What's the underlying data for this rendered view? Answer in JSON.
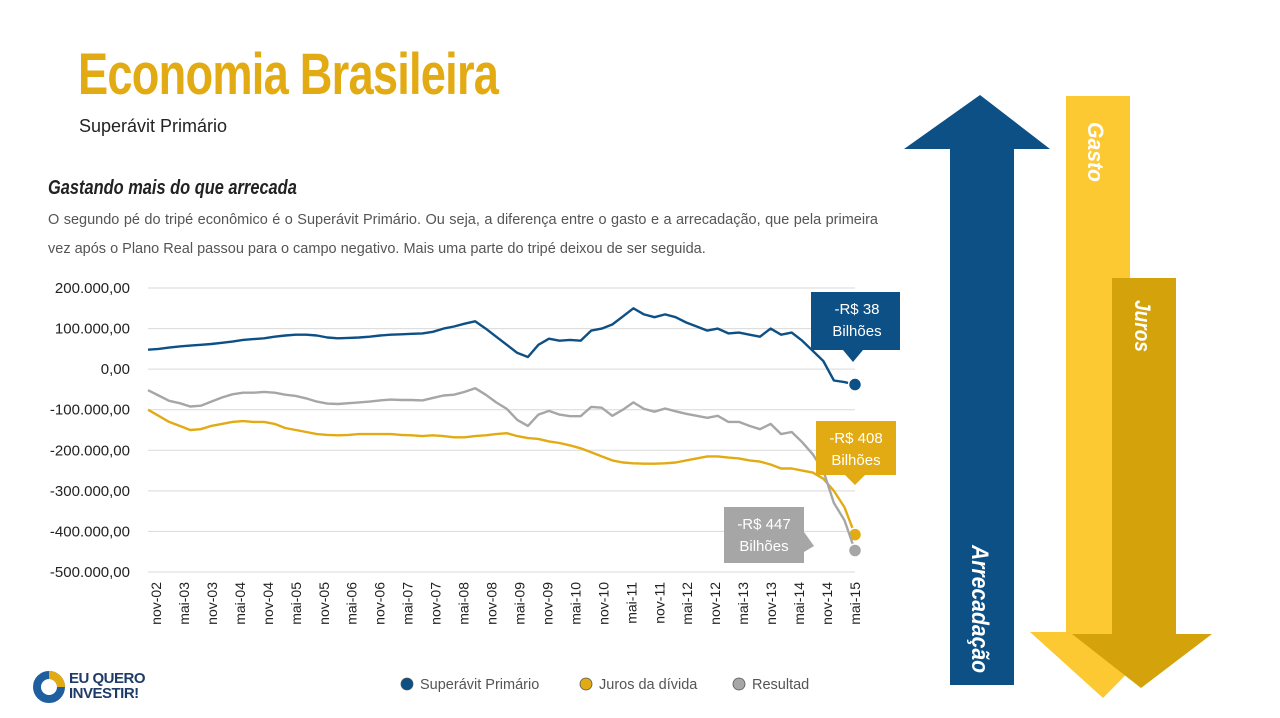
{
  "header": {
    "title": "Economia Brasileira",
    "subtitle": "Superávit Primário"
  },
  "section": {
    "heading": "Gastando mais do que arrecada",
    "paragraph": "O segundo pé do tripé econômico é o Superávit Primário. Ou seja, a diferença entre o gasto e a arrecadação, que pela primeira vez após o Plano Real passou para o campo negativo. Mais uma parte do tripé deixou de ser seguida."
  },
  "arrows": {
    "arrecadacao": "Arrecadação",
    "gasto": "Gasto",
    "juros": "Juros"
  },
  "logo": {
    "line1": "EU QUERO",
    "line2": "INVESTIR!"
  },
  "colors": {
    "blue": "#0d5086",
    "gold": "#e2ab13",
    "gray": "#a6a6a6",
    "arrow_gold_light": "#fdc933",
    "arrow_gold_dark": "#d4a20a"
  },
  "chart_data": {
    "type": "line",
    "ylim": [
      -500000,
      200000
    ],
    "yticks": [
      "200.000,00",
      "100.000,00",
      "0,00",
      "-100.000,00",
      "-200.000,00",
      "-300.000,00",
      "-400.000,00",
      "-500.000,00"
    ],
    "ytick_values": [
      200000,
      100000,
      0,
      -100000,
      -200000,
      -300000,
      -400000,
      -500000
    ],
    "x_labels": [
      "nov-02",
      "mai-03",
      "nov-03",
      "mai-04",
      "nov-04",
      "mai-05",
      "nov-05",
      "mai-06",
      "nov-06",
      "mai-07",
      "nov-07",
      "mai-08",
      "nov-08",
      "mai-09",
      "nov-09",
      "mai-10",
      "nov-10",
      "mai-11",
      "nov-11",
      "mai-12",
      "nov-12",
      "mai-13",
      "nov-13",
      "mai-14",
      "nov-14",
      "mai-15"
    ],
    "grid": true,
    "legend_position": "bottom",
    "series": [
      {
        "name": "Superávit Primário",
        "color": "#0d5086",
        "values": [
          48000,
          50000,
          53000,
          56000,
          58000,
          60000,
          62000,
          65000,
          68000,
          72000,
          74000,
          76000,
          80000,
          83000,
          85000,
          85000,
          83000,
          78000,
          76000,
          77000,
          78000,
          80000,
          83000,
          85000,
          86000,
          87000,
          88000,
          92000,
          100000,
          105000,
          112000,
          118000,
          100000,
          80000,
          60000,
          40000,
          30000,
          60000,
          75000,
          70000,
          72000,
          70000,
          95000,
          100000,
          110000,
          130000,
          150000,
          135000,
          128000,
          135000,
          128000,
          115000,
          105000,
          95000,
          100000,
          88000,
          90000,
          85000,
          80000,
          100000,
          85000,
          90000,
          70000,
          45000,
          20000,
          -28000,
          -32000,
          -38000
        ]
      },
      {
        "name": "Juros da dívida",
        "color": "#e2ab13",
        "values": [
          -100000,
          -115000,
          -130000,
          -140000,
          -150000,
          -148000,
          -140000,
          -135000,
          -130000,
          -128000,
          -130000,
          -130000,
          -135000,
          -145000,
          -150000,
          -155000,
          -160000,
          -162000,
          -163000,
          -162000,
          -160000,
          -160000,
          -160000,
          -160000,
          -162000,
          -163000,
          -165000,
          -163000,
          -165000,
          -168000,
          -168000,
          -165000,
          -163000,
          -160000,
          -158000,
          -165000,
          -170000,
          -172000,
          -178000,
          -182000,
          -188000,
          -195000,
          -205000,
          -215000,
          -225000,
          -230000,
          -232000,
          -233000,
          -233000,
          -232000,
          -230000,
          -225000,
          -220000,
          -215000,
          -215000,
          -218000,
          -220000,
          -225000,
          -228000,
          -235000,
          -245000,
          -245000,
          -250000,
          -255000,
          -270000,
          -300000,
          -340000,
          -408000
        ]
      },
      {
        "name": "Resultad",
        "color": "#a6a6a6",
        "values": [
          -52000,
          -65000,
          -78000,
          -84000,
          -92000,
          -90000,
          -80000,
          -70000,
          -62000,
          -58000,
          -58000,
          -56000,
          -58000,
          -63000,
          -66000,
          -72000,
          -80000,
          -85000,
          -86000,
          -84000,
          -82000,
          -80000,
          -77000,
          -75000,
          -76000,
          -76000,
          -77000,
          -71000,
          -65000,
          -63000,
          -56000,
          -47000,
          -63000,
          -82000,
          -98000,
          -125000,
          -140000,
          -112000,
          -103000,
          -112000,
          -116000,
          -116000,
          -93000,
          -95000,
          -115000,
          -100000,
          -82000,
          -98000,
          -105000,
          -97000,
          -104000,
          -110000,
          -115000,
          -120000,
          -115000,
          -130000,
          -130000,
          -140000,
          -148000,
          -135000,
          -160000,
          -155000,
          -180000,
          -210000,
          -250000,
          -330000,
          -372000,
          -447000
        ]
      }
    ],
    "annotations": [
      {
        "series": "Superávit Primário",
        "line1": "-R$ 38",
        "line2": "Bilhões"
      },
      {
        "series": "Juros da dívida",
        "line1": "-R$ 408",
        "line2": "Bilhões"
      },
      {
        "series": "Resultad",
        "line1": "-R$ 447",
        "line2": "Bilhões"
      }
    ]
  }
}
